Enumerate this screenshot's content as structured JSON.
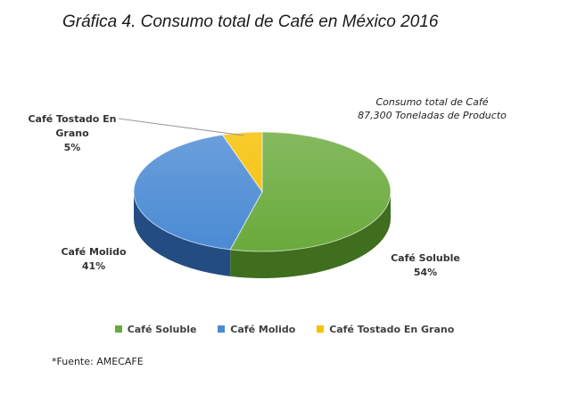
{
  "chart_data": {
    "type": "pie",
    "title": "Gráfica 4. Consumo total de Café en México 2016",
    "annotation": [
      "Consumo total de Café",
      "87,300 Toneladas de Producto"
    ],
    "slices": [
      {
        "name": "Café Soluble",
        "value": 54,
        "value_label": "54%",
        "color": "#6aaa3c",
        "side_color": "#3f6e1e"
      },
      {
        "name": "Café Molido",
        "value": 41,
        "value_label": "41%",
        "color": "#4a8ad4",
        "side_color": "#234d82"
      },
      {
        "name": "Café Tostado En Grano",
        "value": 5,
        "value_label": "5%",
        "color": "#f6c000",
        "side_color": "#a37f00"
      }
    ],
    "data_labels": [
      {
        "lines": [
          "Café Soluble"
        ],
        "value_label": "54%"
      },
      {
        "lines": [
          "Café Molido"
        ],
        "value_label": "41%"
      },
      {
        "lines": [
          "Café Tostado En",
          "Grano"
        ],
        "value_label": "5%"
      }
    ],
    "legend": [
      "Café Soluble",
      "Café Molido",
      "Café Tostado En Grano"
    ],
    "legend_position": "bottom",
    "source": "*Fuente: AMECAFE"
  }
}
